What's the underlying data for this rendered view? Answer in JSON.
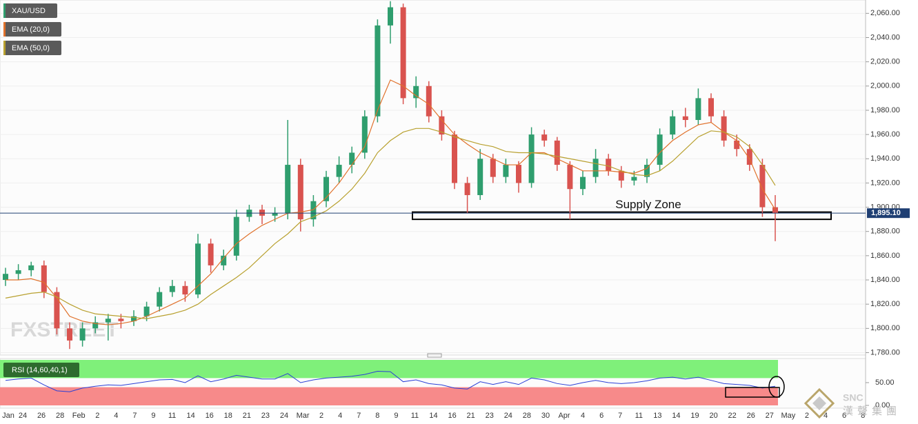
{
  "chart_data": {
    "type": "candlestick",
    "name": "XAU/USD",
    "up_color": "#2f9e6e",
    "down_color": "#d9534f",
    "candles": [
      [
        1840,
        1850,
        1835,
        1845
      ],
      [
        1845,
        1853,
        1840,
        1848
      ],
      [
        1848,
        1855,
        1843,
        1852
      ],
      [
        1852,
        1856,
        1825,
        1830
      ],
      [
        1830,
        1834,
        1795,
        1800
      ],
      [
        1800,
        1805,
        1783,
        1790
      ],
      [
        1790,
        1805,
        1785,
        1800
      ],
      [
        1800,
        1810,
        1796,
        1805
      ],
      [
        1805,
        1812,
        1790,
        1808
      ],
      [
        1808,
        1812,
        1800,
        1806
      ],
      [
        1806,
        1815,
        1802,
        1810
      ],
      [
        1810,
        1822,
        1806,
        1818
      ],
      [
        1818,
        1834,
        1814,
        1830
      ],
      [
        1830,
        1840,
        1826,
        1835
      ],
      [
        1835,
        1839,
        1822,
        1828
      ],
      [
        1828,
        1878,
        1825,
        1870
      ],
      [
        1870,
        1874,
        1846,
        1852
      ],
      [
        1852,
        1865,
        1848,
        1860
      ],
      [
        1860,
        1898,
        1856,
        1892
      ],
      [
        1892,
        1902,
        1888,
        1898
      ],
      [
        1898,
        1902,
        1886,
        1893
      ],
      [
        1893,
        1900,
        1888,
        1895
      ],
      [
        1895,
        1972,
        1890,
        1935
      ],
      [
        1935,
        1940,
        1880,
        1890
      ],
      [
        1890,
        1910,
        1884,
        1905
      ],
      [
        1905,
        1930,
        1900,
        1925
      ],
      [
        1925,
        1942,
        1920,
        1935
      ],
      [
        1935,
        1950,
        1928,
        1945
      ],
      [
        1945,
        1980,
        1940,
        1975
      ],
      [
        1975,
        2055,
        1970,
        2050
      ],
      [
        2050,
        2070,
        2035,
        2065
      ],
      [
        2065,
        2068,
        1985,
        1990
      ],
      [
        1990,
        2008,
        1982,
        2000
      ],
      [
        2000,
        2004,
        1970,
        1975
      ],
      [
        1975,
        1980,
        1955,
        1960
      ],
      [
        1960,
        1963,
        1915,
        1920
      ],
      [
        1920,
        1925,
        1895,
        1910
      ],
      [
        1910,
        1948,
        1906,
        1940
      ],
      [
        1940,
        1944,
        1920,
        1925
      ],
      [
        1925,
        1940,
        1920,
        1935
      ],
      [
        1935,
        1938,
        1912,
        1920
      ],
      [
        1920,
        1966,
        1916,
        1960
      ],
      [
        1960,
        1964,
        1950,
        1955
      ],
      [
        1955,
        1958,
        1930,
        1935
      ],
      [
        1935,
        1938,
        1890,
        1915
      ],
      [
        1915,
        1930,
        1910,
        1925
      ],
      [
        1925,
        1948,
        1920,
        1940
      ],
      [
        1940,
        1944,
        1926,
        1930
      ],
      [
        1930,
        1934,
        1916,
        1922
      ],
      [
        1922,
        1930,
        1918,
        1925
      ],
      [
        1925,
        1940,
        1920,
        1935
      ],
      [
        1935,
        1965,
        1930,
        1960
      ],
      [
        1960,
        1980,
        1956,
        1975
      ],
      [
        1975,
        1982,
        1966,
        1972
      ],
      [
        1972,
        1998,
        1968,
        1990
      ],
      [
        1990,
        1994,
        1970,
        1975
      ],
      [
        1975,
        1980,
        1950,
        1955
      ],
      [
        1955,
        1960,
        1942,
        1948
      ],
      [
        1948,
        1952,
        1930,
        1935
      ],
      [
        1935,
        1940,
        1892,
        1900
      ],
      [
        1900,
        1910,
        1872,
        1895
      ]
    ],
    "series": [
      {
        "name": "EMA (20,0)",
        "color": "#e0712b",
        "values": [
          1840,
          1840,
          1841,
          1838,
          1825,
          1810,
          1806,
          1804,
          1803,
          1804,
          1806,
          1810,
          1815,
          1820,
          1825,
          1835,
          1845,
          1858,
          1870,
          1878,
          1885,
          1890,
          1895,
          1896,
          1898,
          1908,
          1920,
          1935,
          1950,
          1980,
          2005,
          2000,
          1992,
          1985,
          1972,
          1960,
          1952,
          1945,
          1940,
          1935,
          1935,
          1945,
          1945,
          1940,
          1935,
          1930,
          1930,
          1930,
          1929,
          1928,
          1932,
          1945,
          1955,
          1962,
          1968,
          1970,
          1962,
          1955,
          1940,
          1915,
          1898
        ]
      },
      {
        "name": "EMA (50,0)",
        "color": "#b8a02e",
        "values": [
          1825,
          1827,
          1829,
          1830,
          1826,
          1820,
          1815,
          1812,
          1811,
          1810,
          1809,
          1808,
          1810,
          1812,
          1815,
          1820,
          1828,
          1835,
          1842,
          1850,
          1860,
          1870,
          1878,
          1888,
          1892,
          1897,
          1905,
          1915,
          1928,
          1945,
          1955,
          1962,
          1965,
          1965,
          1962,
          1958,
          1955,
          1952,
          1950,
          1946,
          1945,
          1945,
          1944,
          1942,
          1940,
          1938,
          1936,
          1934,
          1930,
          1927,
          1926,
          1930,
          1938,
          1948,
          1958,
          1963,
          1962,
          1958,
          1950,
          1935,
          1918
        ]
      }
    ],
    "ylim": [
      1778,
      2071
    ],
    "yticks": [
      {
        "value": 1780,
        "label": "1,780.00"
      },
      {
        "value": 1800,
        "label": "1,800.00"
      },
      {
        "value": 1820,
        "label": "1,820.00"
      },
      {
        "value": 1840,
        "label": "1,840.00"
      },
      {
        "value": 1860,
        "label": "1,860.00"
      },
      {
        "value": 1880,
        "label": "1,880.00"
      },
      {
        "value": 1900,
        "label": "1,900.00"
      },
      {
        "value": 1920,
        "label": "1,920.00"
      },
      {
        "value": 1940,
        "label": "1,940.00"
      },
      {
        "value": 1960,
        "label": "1,960.00"
      },
      {
        "value": 1980,
        "label": "1,980.00"
      },
      {
        "value": 2000,
        "label": "2,000.00"
      },
      {
        "value": 2020,
        "label": "2,020.00"
      },
      {
        "value": 2040,
        "label": "2,040.00"
      },
      {
        "value": 2060,
        "label": "2,060.00"
      }
    ],
    "last_price": {
      "value": 1895.1,
      "label": "1,895.10"
    },
    "annotation": {
      "text": "Supply Zone",
      "range": [
        1890,
        1896
      ]
    },
    "x_labels": [
      "Jan",
      "24",
      "26",
      "28",
      "Feb",
      "2",
      "4",
      "7",
      "9",
      "11",
      "14",
      "16",
      "18",
      "21",
      "23",
      "24",
      "Mar",
      "2",
      "4",
      "7",
      "8",
      "9",
      "11",
      "14",
      "16",
      "21",
      "23",
      "24",
      "28",
      "30",
      "Apr",
      "4",
      "6",
      "7",
      "11",
      "13",
      "14",
      "19",
      "20",
      "22",
      "26",
      "27",
      "May",
      "2",
      "4",
      "6",
      "8"
    ],
    "rsi": {
      "name": "RSI (14,60,40,1)",
      "color": "#2a3fd6",
      "values": [
        55,
        58,
        60,
        45,
        32,
        30,
        38,
        42,
        45,
        44,
        48,
        52,
        56,
        57,
        50,
        65,
        52,
        58,
        66,
        62,
        58,
        58,
        70,
        50,
        56,
        60,
        62,
        64,
        68,
        75,
        74,
        52,
        56,
        48,
        45,
        38,
        36,
        52,
        46,
        52,
        46,
        60,
        56,
        48,
        44,
        50,
        55,
        50,
        48,
        50,
        54,
        60,
        62,
        58,
        62,
        55,
        48,
        46,
        44,
        38,
        42
      ],
      "ylim": [
        0,
        100
      ],
      "upper": 60,
      "lower": 40,
      "yticks": [
        {
          "value": 50,
          "label": "50.00"
        },
        {
          "value": 0,
          "label": "0.00"
        }
      ]
    },
    "watermark": "FXSTREET",
    "logo": "SNC",
    "logo_text": "漢聲集團"
  }
}
